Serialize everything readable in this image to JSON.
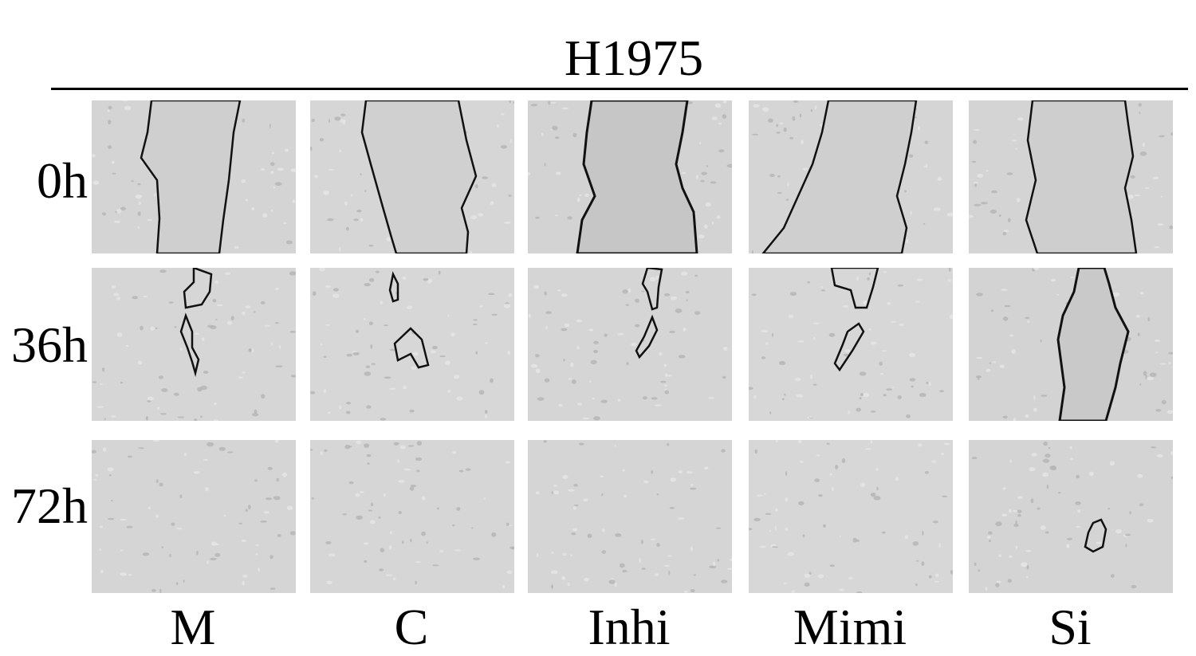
{
  "figure": {
    "title": "H1975",
    "rows": [
      "0h",
      "36h",
      "72h"
    ],
    "columns": [
      "M",
      "C",
      "Inhi",
      "Mimi",
      "Si"
    ],
    "wound_remaining": {
      "0h": {
        "M": true,
        "C": true,
        "Inhi": true,
        "Mimi": true,
        "Si": true
      },
      "36h": {
        "M": true,
        "C": true,
        "Inhi": true,
        "Mimi": true,
        "Si": true
      },
      "72h": {
        "M": false,
        "C": false,
        "Inhi": false,
        "Mimi": false,
        "Si": true
      }
    }
  }
}
